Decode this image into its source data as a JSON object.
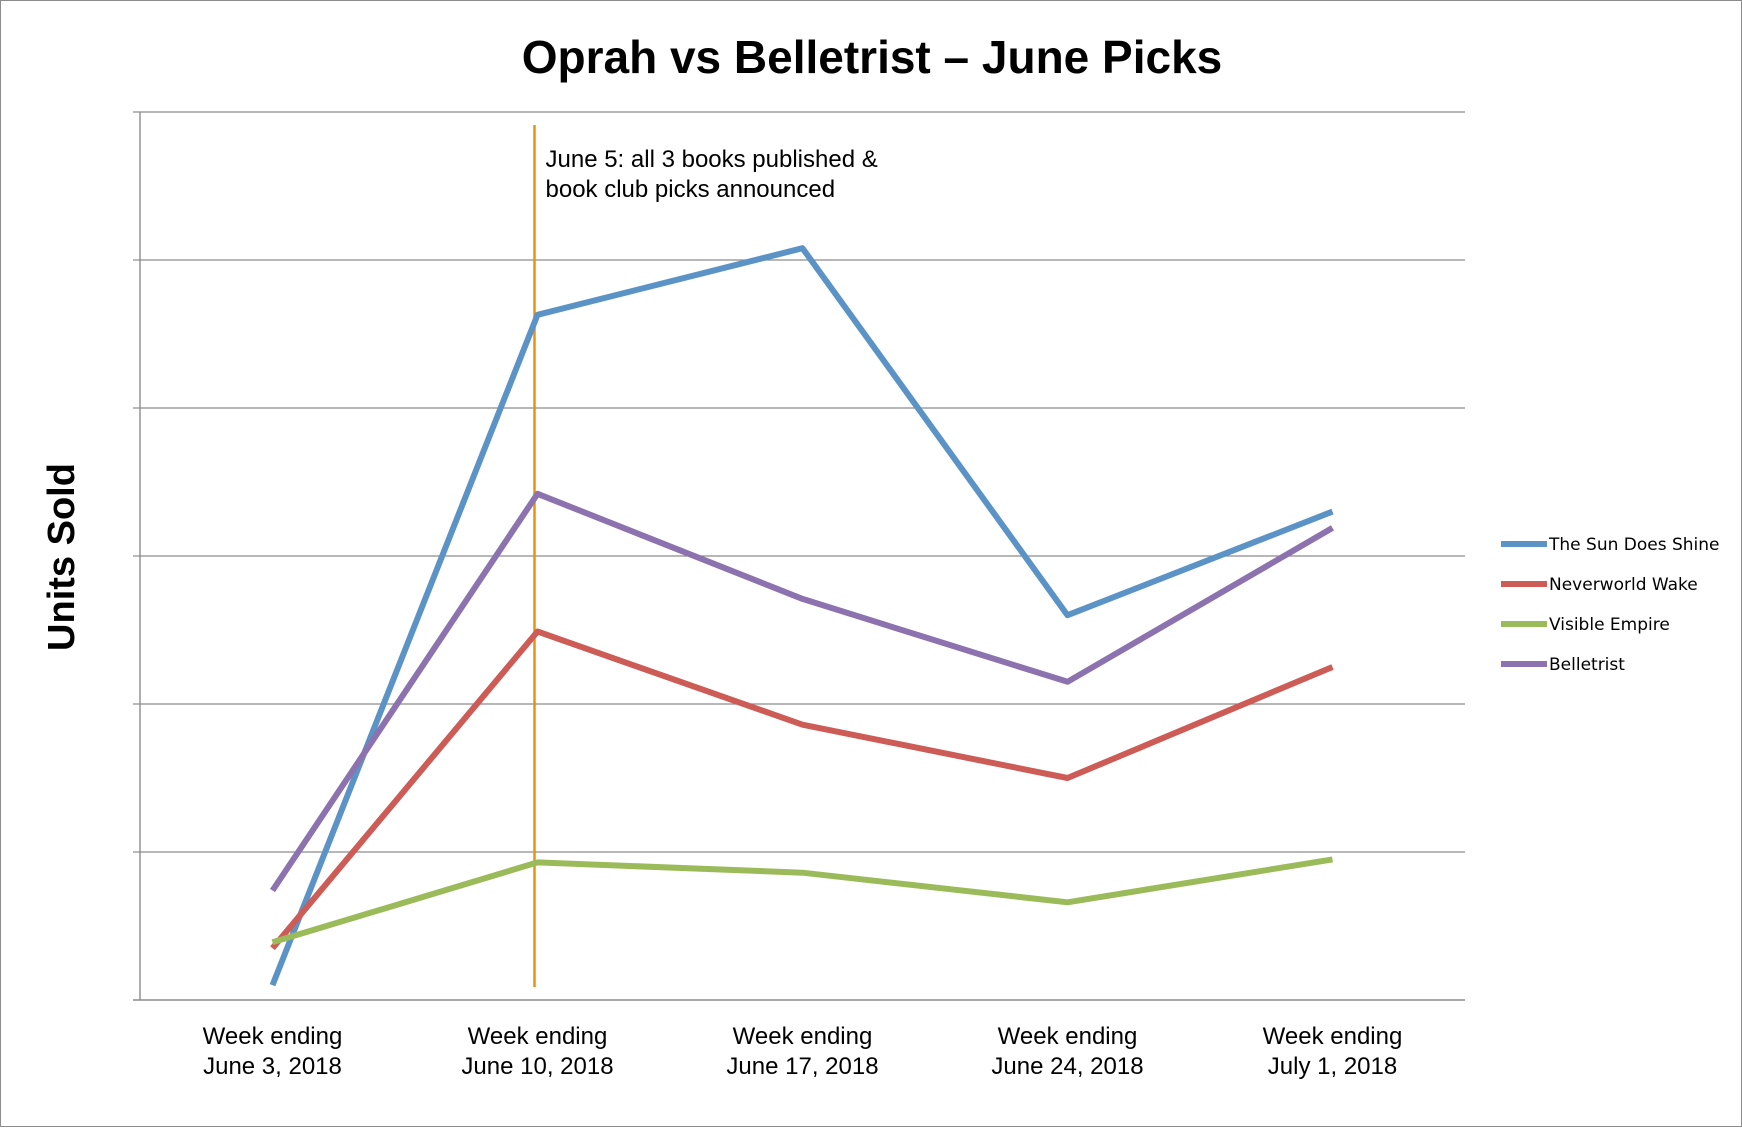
{
  "chart_data": {
    "type": "line",
    "title": "Oprah vs Belletrist – June Picks",
    "xlabel": "",
    "ylabel": "Units Sold",
    "ylim": [
      0,
      6
    ],
    "y_gridlines": [
      1,
      2,
      3,
      4,
      5,
      6
    ],
    "y_tick_labels_shown": false,
    "grid": true,
    "legend_position": "right",
    "categories": [
      [
        "Week ending",
        "June 3, 2018"
      ],
      [
        "Week ending",
        "June 10, 2018"
      ],
      [
        "Week ending",
        "June 17, 2018"
      ],
      [
        "Week ending",
        "June 24, 2018"
      ],
      [
        "Week ending",
        "July 1, 2018"
      ]
    ],
    "series": [
      {
        "name": "The Sun Does Shine",
        "color": "#5b93c7",
        "values": [
          0.1,
          4.63,
          5.08,
          2.6,
          3.3
        ]
      },
      {
        "name": "Neverworld Wake",
        "color": "#cd5b56",
        "values": [
          0.35,
          2.49,
          1.86,
          1.5,
          2.25
        ]
      },
      {
        "name": "Visible Empire",
        "color": "#9bbb5a",
        "values": [
          0.39,
          0.93,
          0.86,
          0.66,
          0.95
        ]
      },
      {
        "name": "Belletrist",
        "color": "#8c72ae",
        "values": [
          0.74,
          3.42,
          2.71,
          2.15,
          3.19
        ]
      }
    ],
    "annotation": {
      "category_index": 1,
      "color": "#e8930f",
      "lines": [
        "June 5: all 3 books published &",
        "book club picks announced"
      ]
    }
  }
}
